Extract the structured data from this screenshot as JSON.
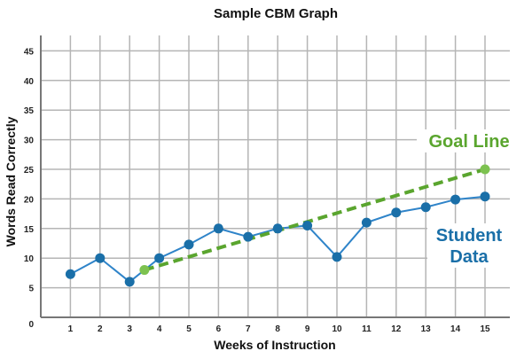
{
  "chart_data": {
    "type": "line",
    "title": "Sample CBM Graph",
    "xlabel": "Weeks of Instruction",
    "ylabel": "Words Read Correctly",
    "x_ticks": [
      1,
      2,
      3,
      4,
      5,
      6,
      7,
      8,
      9,
      10,
      11,
      12,
      13,
      14,
      15
    ],
    "y_ticks": [
      0,
      5,
      10,
      15,
      20,
      25,
      30,
      35,
      40,
      45
    ],
    "xlim": [
      0,
      15.8
    ],
    "ylim": [
      0,
      47
    ],
    "grid": true,
    "series": [
      {
        "name": "Student Data",
        "color": "#1a6fa8",
        "line_color": "#2f84c9",
        "style": "solid",
        "x": [
          1,
          2,
          3,
          4,
          5,
          6,
          7,
          8,
          9,
          10,
          11,
          12,
          13,
          14,
          15
        ],
        "y": [
          7.3,
          10,
          6,
          10,
          12.3,
          15,
          13.6,
          15,
          15.5,
          10.2,
          16,
          17.7,
          18.6,
          19.9,
          20.4
        ]
      },
      {
        "name": "Goal Line",
        "color": "#5aa52e",
        "marker_color": "#7dc250",
        "style": "dashed",
        "x": [
          3.5,
          15
        ],
        "y": [
          8,
          25
        ]
      }
    ]
  }
}
